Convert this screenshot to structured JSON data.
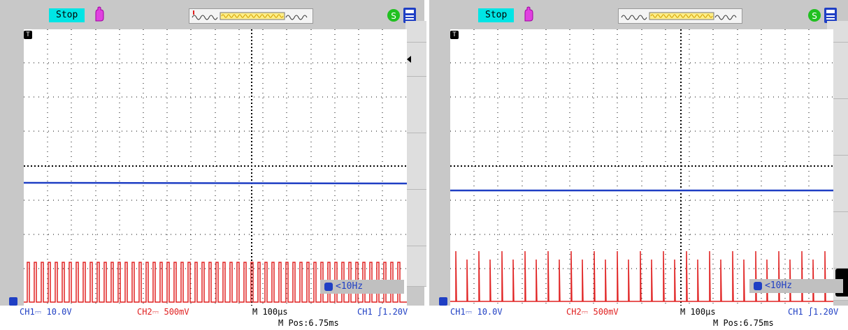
{
  "screens": [
    {
      "status": "Stop",
      "trigger_marker": "T",
      "freq_readout": "<10Hz",
      "ch1_label": "CH1⎓ 10.0V",
      "ch2_label": "CH2⎓ 500mV",
      "timebase": "M 100μs",
      "trigger_setting": "CH1 ∫1.20V",
      "mpos": "M Pos:6.75ms"
    },
    {
      "status": "Stop",
      "trigger_marker": "T",
      "freq_readout": "<10Hz",
      "ch1_label": "CH1⎓ 10.0V",
      "ch2_label": "CH2⎓ 500mV",
      "timebase": "M 100μs",
      "trigger_setting": "CH1 ∫1.20V",
      "mpos": "M Pos:6.75ms"
    }
  ],
  "colors": {
    "ch1": "#1f3fc4",
    "ch2": "#e02020",
    "status_bg": "#00e5e5",
    "frame": "#c8c8c8"
  },
  "icons": [
    "stop-hand-icon",
    "acquisition-waveform-icon",
    "usb-icon",
    "printer-icon",
    "trigger-marker-icon",
    "frequency-icon"
  ]
}
